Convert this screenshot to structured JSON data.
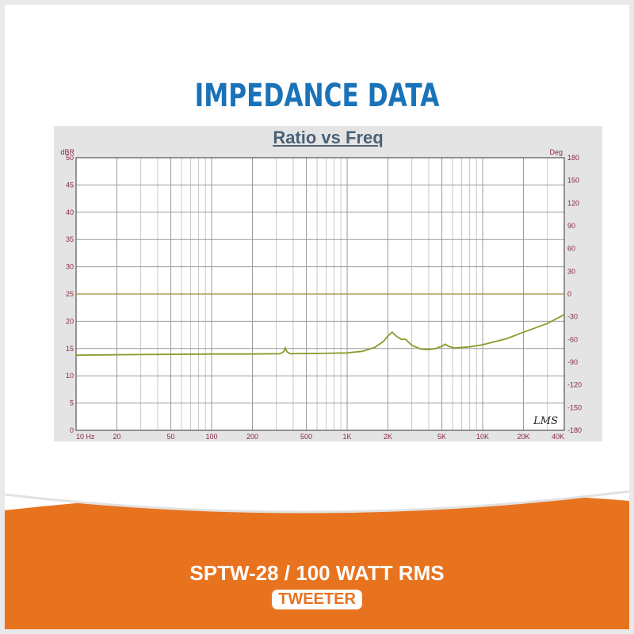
{
  "header": {
    "title": "IMPEDANCE DATA"
  },
  "footer": {
    "model": "SPTW-28 / 100 WATT RMS",
    "category": "TWEETER"
  },
  "colors": {
    "headline": "#1a73b8",
    "accent_orange": "#e8731f",
    "curve": "#8c9a2c",
    "reference_line": "#a08a3a"
  },
  "chart_data": {
    "type": "line",
    "title": "Ratio vs Freq",
    "xscale": "log",
    "xlim": [
      10,
      40000
    ],
    "ylim": [
      0,
      50
    ],
    "y2lim": [
      -180,
      180
    ],
    "ylabel": "dBR",
    "y2label": "Deg",
    "grid": true,
    "watermark": "LMS",
    "x_ticks": [
      {
        "value": 10,
        "label": "10  Hz"
      },
      {
        "value": 20,
        "label": "20"
      },
      {
        "value": 50,
        "label": "50"
      },
      {
        "value": 100,
        "label": "100"
      },
      {
        "value": 200,
        "label": "200"
      },
      {
        "value": 500,
        "label": "500"
      },
      {
        "value": 1000,
        "label": "1K"
      },
      {
        "value": 2000,
        "label": "2K"
      },
      {
        "value": 5000,
        "label": "5K"
      },
      {
        "value": 10000,
        "label": "10K"
      },
      {
        "value": 20000,
        "label": "20K"
      },
      {
        "value": 40000,
        "label": "40K"
      }
    ],
    "y_ticks": [
      "0",
      "5",
      "10",
      "15",
      "20",
      "25",
      "30",
      "35",
      "40",
      "45",
      "50"
    ],
    "y2_ticks": [
      "-180",
      "-150",
      "-120",
      "-90",
      "-60",
      "-30",
      "0",
      "30",
      "60",
      "90",
      "120",
      "150",
      "180"
    ],
    "series": [
      {
        "points": [
          [
            10,
            13.8
          ],
          [
            30,
            13.9
          ],
          [
            100,
            14
          ],
          [
            200,
            14
          ],
          [
            320,
            14.05
          ],
          [
            340,
            14.4
          ],
          [
            350,
            15.1
          ],
          [
            360,
            14.4
          ],
          [
            380,
            14.05
          ],
          [
            600,
            14.1
          ],
          [
            1000,
            14.2
          ],
          [
            1300,
            14.5
          ],
          [
            1600,
            15.2
          ],
          [
            1850,
            16.3
          ],
          [
            2000,
            17.3
          ],
          [
            2150,
            18
          ],
          [
            2300,
            17.3
          ],
          [
            2500,
            16.7
          ],
          [
            2700,
            16.7
          ],
          [
            3000,
            15.6
          ],
          [
            3500,
            14.9
          ],
          [
            4000,
            14.8
          ],
          [
            4500,
            15
          ],
          [
            5000,
            15.4
          ],
          [
            5300,
            15.8
          ],
          [
            5600,
            15.4
          ],
          [
            6200,
            15.1
          ],
          [
            8000,
            15.3
          ],
          [
            10000,
            15.7
          ],
          [
            15000,
            16.8
          ],
          [
            20000,
            18
          ],
          [
            30000,
            19.6
          ],
          [
            40000,
            21.2
          ]
        ]
      },
      {
        "points": [
          [
            10,
            25
          ],
          [
            40000,
            25
          ]
        ]
      }
    ]
  }
}
